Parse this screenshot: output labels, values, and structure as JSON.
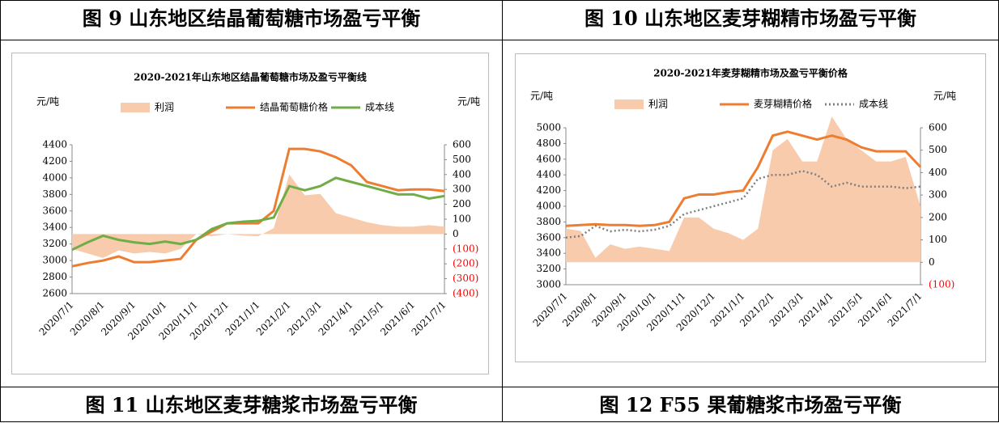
{
  "header": [
    "图 9 山东地区结晶葡萄糖市场盈亏平衡",
    "图 10 山东地区麦芽糊精市场盈亏平衡"
  ],
  "footer": [
    "图 11 山东地区麦芽糖浆市场盈亏平衡",
    "图 12 F55 果葡糖浆市场盈亏平衡"
  ],
  "chart_data": [
    {
      "type": "line",
      "title": "2020-2021年山东地区结晶葡萄糖市场及盈亏平衡线",
      "y_label": "元/吨",
      "y2_label": "元/吨",
      "categories": [
        "2020/7/1",
        null,
        "2020/8/1",
        null,
        "2020/9/1",
        null,
        "2020/10/1",
        null,
        "2020/11/1",
        null,
        "2020/12/1",
        null,
        "2021/1/1",
        null,
        "2021/2/1",
        null,
        "2021/3/1",
        null,
        "2021/4/1",
        null,
        "2021/5/1",
        null,
        "2021/6/1",
        null,
        "2021/7/1"
      ],
      "series": [
        {
          "name": "利润",
          "type": "area",
          "axis": "y2",
          "color": "#F8CBAD",
          "values": [
            -100,
            -130,
            -160,
            -110,
            -130,
            -120,
            -130,
            -100,
            0,
            -15,
            0,
            -10,
            -15,
            40,
            400,
            260,
            270,
            140,
            110,
            80,
            60,
            50,
            50,
            60,
            50
          ]
        },
        {
          "name": "结晶葡萄糖价格",
          "type": "line",
          "color": "#ED7D31",
          "values": [
            2930,
            2970,
            3000,
            3050,
            2980,
            2980,
            3000,
            3020,
            3250,
            3350,
            3450,
            3450,
            3450,
            3600,
            4350,
            4350,
            4320,
            4250,
            4150,
            3950,
            3900,
            3850,
            3860,
            3860,
            3840
          ]
        },
        {
          "name": "成本线",
          "type": "line",
          "color": "#70AD47",
          "values": [
            3130,
            3220,
            3300,
            3250,
            3220,
            3200,
            3230,
            3200,
            3250,
            3380,
            3450,
            3470,
            3480,
            3520,
            3900,
            3850,
            3900,
            4000,
            3950,
            3900,
            3850,
            3800,
            3800,
            3750,
            3780
          ]
        }
      ],
      "ylim": [
        2600,
        4400
      ],
      "yticks": [
        2600,
        2800,
        3000,
        3200,
        3400,
        3600,
        3800,
        4000,
        4200,
        4400
      ],
      "y2lim": [
        -400,
        600
      ],
      "y2ticks": [
        {
          "value": -400,
          "label": "(400)"
        },
        {
          "value": -300,
          "label": "(300)"
        },
        {
          "value": -200,
          "label": "(200)"
        },
        {
          "value": -100,
          "label": "(100)"
        },
        0,
        100,
        200,
        300,
        400,
        500,
        600
      ],
      "y2_negative_color": "#FF0000",
      "legend": "top"
    },
    {
      "type": "line",
      "title": "2020-2021年麦芽糊精市场及盈亏平衡价格",
      "y_label": "元/吨",
      "y2_label": "元/吨",
      "categories": [
        "2020/7/1",
        null,
        "2020/8/1",
        null,
        "2020/9/1",
        null,
        "2020/10/1",
        null,
        "2020/11/1",
        null,
        "2020/12/1",
        null,
        "2021/1/1",
        null,
        "2021/2/1",
        null,
        "2021/3/1",
        null,
        "2021/4/1",
        null,
        "2021/5/1",
        null,
        "2021/6/1",
        null,
        "2021/7/1"
      ],
      "series": [
        {
          "name": "利润",
          "type": "area",
          "axis": "y2",
          "color": "#F8CBAD",
          "values": [
            150,
            140,
            20,
            80,
            60,
            70,
            60,
            50,
            200,
            200,
            150,
            130,
            100,
            150,
            500,
            550,
            450,
            450,
            650,
            550,
            500,
            450,
            450,
            470,
            250
          ]
        },
        {
          "name": "麦芽糊精价格",
          "type": "line",
          "color": "#ED7D31",
          "values": [
            3750,
            3760,
            3770,
            3760,
            3760,
            3750,
            3760,
            3800,
            4100,
            4150,
            4150,
            4180,
            4200,
            4500,
            4900,
            4950,
            4900,
            4850,
            4900,
            4850,
            4750,
            4700,
            4700,
            4700,
            4500
          ]
        },
        {
          "name": "成本线",
          "type": "line",
          "dash": true,
          "color": "#7F7F7F",
          "values": [
            3600,
            3620,
            3750,
            3680,
            3700,
            3680,
            3700,
            3750,
            3900,
            3950,
            4000,
            4050,
            4100,
            4350,
            4400,
            4400,
            4450,
            4400,
            4250,
            4300,
            4250,
            4250,
            4250,
            4230,
            4250
          ]
        }
      ],
      "ylim": [
        3000,
        5000
      ],
      "yticks": [
        3000,
        3200,
        3400,
        3600,
        3800,
        4000,
        4200,
        4400,
        4600,
        4800,
        5000
      ],
      "y2lim": [
        -100,
        600
      ],
      "y2ticks": [
        {
          "value": -100,
          "label": "(100)"
        },
        0,
        100,
        200,
        300,
        400,
        500,
        600
      ],
      "y2_negative_color": "#FF0000",
      "legend": "top"
    }
  ]
}
